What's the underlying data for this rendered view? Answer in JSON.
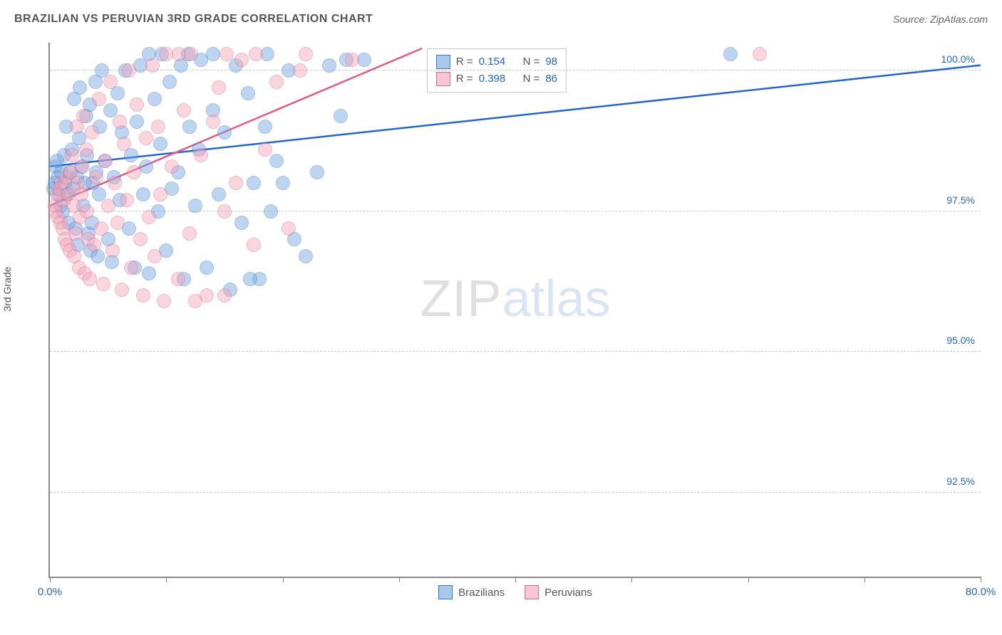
{
  "header": {
    "title": "BRAZILIAN VS PERUVIAN 3RD GRADE CORRELATION CHART",
    "source_prefix": "Source: ",
    "source_name": "ZipAtlas.com"
  },
  "watermark": {
    "zip": "ZIP",
    "atlas": "atlas"
  },
  "chart": {
    "type": "scatter",
    "ylabel": "3rd Grade",
    "xlim": [
      0,
      80
    ],
    "ylim": [
      91.0,
      100.5
    ],
    "xtick_positions": [
      0,
      10,
      20,
      30,
      40,
      50,
      60,
      70,
      80
    ],
    "xtick_labels": {
      "0": "0.0%",
      "80": "80.0%"
    },
    "ytick_positions": [
      92.5,
      95.0,
      97.5,
      100.0
    ],
    "ytick_labels": [
      "92.5%",
      "95.0%",
      "97.5%",
      "100.0%"
    ],
    "ylabel_color": "#2566c9",
    "xlabel_color": "#2566c9",
    "grid_color": "#cccccc",
    "axis_color": "#888888",
    "background_color": "#ffffff",
    "marker_radius": 10,
    "marker_opacity": 0.45,
    "marker_border_width": 1.5,
    "series": [
      {
        "name": "Brazilians",
        "fill": "#6fa3e0",
        "stroke": "#3a78c9",
        "R": "0.154",
        "N": "98",
        "trend": {
          "x1": 0,
          "y1": 98.3,
          "x2": 80,
          "y2": 100.1,
          "width": 2.5,
          "color": "#2566c9"
        },
        "points": [
          [
            0.3,
            97.9
          ],
          [
            0.5,
            98.3
          ],
          [
            0.4,
            98.0
          ],
          [
            0.7,
            98.1
          ],
          [
            0.8,
            97.8
          ],
          [
            0.6,
            98.4
          ],
          [
            0.9,
            97.6
          ],
          [
            1.0,
            98.2
          ],
          [
            1.1,
            97.5
          ],
          [
            1.3,
            98.0
          ],
          [
            1.2,
            98.5
          ],
          [
            1.5,
            97.8
          ],
          [
            1.4,
            99.0
          ],
          [
            1.7,
            98.2
          ],
          [
            1.6,
            97.3
          ],
          [
            1.9,
            98.6
          ],
          [
            2.0,
            97.9
          ],
          [
            2.1,
            99.5
          ],
          [
            2.3,
            98.1
          ],
          [
            2.2,
            97.2
          ],
          [
            2.5,
            98.8
          ],
          [
            2.4,
            96.9
          ],
          [
            2.7,
            98.3
          ],
          [
            2.6,
            99.7
          ],
          [
            2.9,
            97.6
          ],
          [
            3.0,
            98.0
          ],
          [
            3.1,
            99.2
          ],
          [
            3.3,
            97.1
          ],
          [
            3.2,
            98.5
          ],
          [
            3.5,
            96.8
          ],
          [
            3.4,
            99.4
          ],
          [
            3.7,
            98.0
          ],
          [
            3.6,
            97.3
          ],
          [
            3.9,
            99.8
          ],
          [
            4.0,
            98.2
          ],
          [
            4.1,
            96.7
          ],
          [
            4.3,
            99.0
          ],
          [
            4.2,
            97.8
          ],
          [
            4.5,
            100.0
          ],
          [
            4.7,
            98.4
          ],
          [
            5.0,
            97.0
          ],
          [
            5.2,
            99.3
          ],
          [
            5.5,
            98.1
          ],
          [
            5.3,
            96.6
          ],
          [
            5.8,
            99.6
          ],
          [
            6.0,
            97.7
          ],
          [
            6.2,
            98.9
          ],
          [
            6.5,
            100.0
          ],
          [
            6.8,
            97.2
          ],
          [
            7.0,
            98.5
          ],
          [
            7.3,
            96.5
          ],
          [
            7.5,
            99.1
          ],
          [
            7.8,
            100.1
          ],
          [
            8.0,
            97.8
          ],
          [
            8.3,
            98.3
          ],
          [
            8.5,
            96.4
          ],
          [
            8.5,
            100.3
          ],
          [
            9.0,
            99.5
          ],
          [
            9.3,
            97.5
          ],
          [
            9.5,
            98.7
          ],
          [
            9.6,
            100.3
          ],
          [
            10.0,
            96.8
          ],
          [
            10.3,
            99.8
          ],
          [
            10.5,
            97.9
          ],
          [
            11.0,
            98.2
          ],
          [
            11.3,
            100.1
          ],
          [
            11.9,
            100.3
          ],
          [
            11.5,
            96.3
          ],
          [
            12.0,
            99.0
          ],
          [
            12.5,
            97.6
          ],
          [
            12.8,
            98.6
          ],
          [
            13.0,
            100.2
          ],
          [
            13.5,
            96.5
          ],
          [
            14.0,
            99.3
          ],
          [
            14.0,
            100.3
          ],
          [
            14.5,
            97.8
          ],
          [
            15.0,
            98.9
          ],
          [
            15.5,
            96.1
          ],
          [
            16.0,
            100.1
          ],
          [
            16.5,
            97.3
          ],
          [
            17.0,
            99.6
          ],
          [
            17.5,
            98.0
          ],
          [
            18.0,
            96.3
          ],
          [
            17.2,
            96.3
          ],
          [
            18.5,
            99.0
          ],
          [
            18.7,
            100.3
          ],
          [
            19.0,
            97.5
          ],
          [
            19.5,
            98.4
          ],
          [
            20.0,
            98.0
          ],
          [
            20.5,
            100.0
          ],
          [
            21.0,
            97.0
          ],
          [
            25.5,
            100.2
          ],
          [
            27.0,
            100.2
          ],
          [
            22.0,
            96.7
          ],
          [
            23.0,
            98.2
          ],
          [
            24.0,
            100.1
          ],
          [
            25.0,
            99.2
          ],
          [
            58.5,
            100.3
          ]
        ]
      },
      {
        "name": "Peruvians",
        "fill": "#f2a3b8",
        "stroke": "#e06a8a",
        "R": "0.398",
        "N": "86",
        "trend": {
          "x1": 0,
          "y1": 97.6,
          "x2": 32,
          "y2": 100.4,
          "width": 2.5,
          "color": "#e55a82"
        },
        "points": [
          [
            0.4,
            97.6
          ],
          [
            0.6,
            97.8
          ],
          [
            0.5,
            97.5
          ],
          [
            0.8,
            97.9
          ],
          [
            0.7,
            97.4
          ],
          [
            1.0,
            98.0
          ],
          [
            0.9,
            97.3
          ],
          [
            1.2,
            97.7
          ],
          [
            1.1,
            97.2
          ],
          [
            1.4,
            98.1
          ],
          [
            1.3,
            97.0
          ],
          [
            1.6,
            97.8
          ],
          [
            1.5,
            96.9
          ],
          [
            1.8,
            98.2
          ],
          [
            1.7,
            96.8
          ],
          [
            2.0,
            97.6
          ],
          [
            1.9,
            98.5
          ],
          [
            2.2,
            97.1
          ],
          [
            2.1,
            96.7
          ],
          [
            2.4,
            98.0
          ],
          [
            2.3,
            99.0
          ],
          [
            2.6,
            97.4
          ],
          [
            2.5,
            96.5
          ],
          [
            2.8,
            98.3
          ],
          [
            2.7,
            97.8
          ],
          [
            3.0,
            96.4
          ],
          [
            2.9,
            99.2
          ],
          [
            3.2,
            97.5
          ],
          [
            3.1,
            98.6
          ],
          [
            3.4,
            96.3
          ],
          [
            3.3,
            97.0
          ],
          [
            3.6,
            98.9
          ],
          [
            3.8,
            96.9
          ],
          [
            4.0,
            98.1
          ],
          [
            4.2,
            99.5
          ],
          [
            4.4,
            97.2
          ],
          [
            4.6,
            96.2
          ],
          [
            4.8,
            98.4
          ],
          [
            5.0,
            97.6
          ],
          [
            5.2,
            99.8
          ],
          [
            5.4,
            96.8
          ],
          [
            5.6,
            98.0
          ],
          [
            5.8,
            97.3
          ],
          [
            6.0,
            99.1
          ],
          [
            6.2,
            96.1
          ],
          [
            6.4,
            98.7
          ],
          [
            6.6,
            97.7
          ],
          [
            6.8,
            100.0
          ],
          [
            7.0,
            96.5
          ],
          [
            7.2,
            98.2
          ],
          [
            7.5,
            99.4
          ],
          [
            7.8,
            97.0
          ],
          [
            8.0,
            96.0
          ],
          [
            8.3,
            98.8
          ],
          [
            8.5,
            97.4
          ],
          [
            8.8,
            100.1
          ],
          [
            9.0,
            96.7
          ],
          [
            9.3,
            99.0
          ],
          [
            9.5,
            97.8
          ],
          [
            9.8,
            95.9
          ],
          [
            10.0,
            100.3
          ],
          [
            10.5,
            98.3
          ],
          [
            11.0,
            96.3
          ],
          [
            11.1,
            100.3
          ],
          [
            11.5,
            99.3
          ],
          [
            12.0,
            97.1
          ],
          [
            12.1,
            100.3
          ],
          [
            12.5,
            95.9
          ],
          [
            13.0,
            98.5
          ],
          [
            14.0,
            99.1
          ],
          [
            13.5,
            96.0
          ],
          [
            14.5,
            99.7
          ],
          [
            15.0,
            97.5
          ],
          [
            15.2,
            100.3
          ],
          [
            21.5,
            100.0
          ],
          [
            16.0,
            98.0
          ],
          [
            16.5,
            100.2
          ],
          [
            15.0,
            96.0
          ],
          [
            17.5,
            96.9
          ],
          [
            17.7,
            100.3
          ],
          [
            18.5,
            98.6
          ],
          [
            19.5,
            99.8
          ],
          [
            20.5,
            97.2
          ],
          [
            22.0,
            100.3
          ],
          [
            26.0,
            100.2
          ],
          [
            61.0,
            100.3
          ]
        ]
      }
    ],
    "stats_box": {
      "top_pct": 1,
      "left_pct": 40.5,
      "rows": [
        {
          "swatch_fill": "#a9c8ec",
          "swatch_stroke": "#3a78c9",
          "r_label": "R =",
          "r_val": "0.154",
          "n_label": "N =",
          "n_val": "98"
        },
        {
          "swatch_fill": "#f6c6d3",
          "swatch_stroke": "#e06a8a",
          "r_label": "R =",
          "r_val": "0.398",
          "n_label": "N =",
          "n_val": "86"
        }
      ]
    },
    "bottom_legend": [
      {
        "swatch_fill": "#a9c8ec",
        "swatch_stroke": "#3a78c9",
        "label": "Brazilians"
      },
      {
        "swatch_fill": "#f6c6d3",
        "swatch_stroke": "#e06a8a",
        "label": "Peruvians"
      }
    ]
  }
}
